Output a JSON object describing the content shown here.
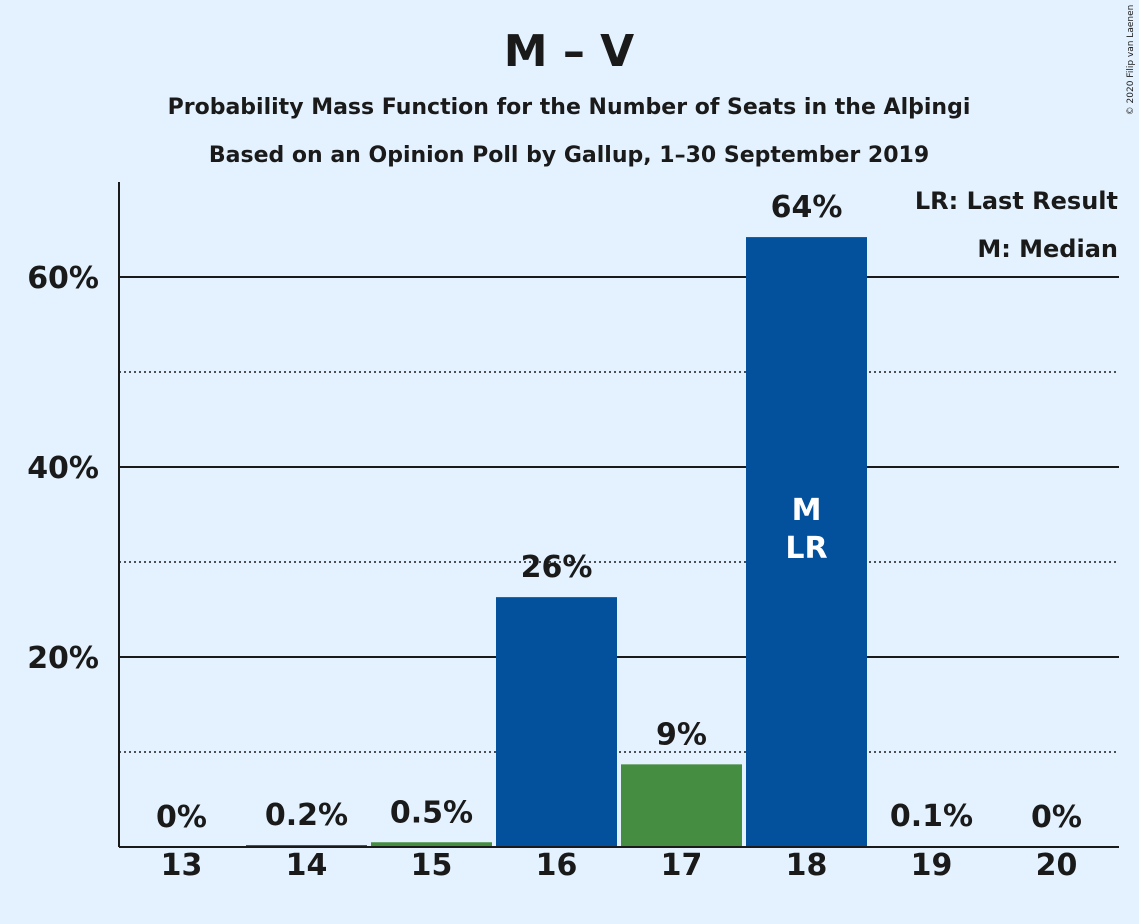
{
  "colors": {
    "background": "#e3f2fe",
    "bar_blue": "#03509c",
    "bar_green": "#458d41",
    "text": "#1a1a1a"
  },
  "chart_data": {
    "type": "bar",
    "title": "M – V",
    "subtitle": "Probability Mass Function for the Number of Seats in the Alþingi",
    "subtitle2": "Based on an Opinion Poll by Gallup, 1–30 September 2019",
    "copyright": "© 2020 Filip van Laenen",
    "xlabel": "",
    "ylabel": "",
    "ylim": [
      0,
      70
    ],
    "yticks": [
      20,
      40,
      60
    ],
    "ytick_labels": [
      "20%",
      "40%",
      "60%"
    ],
    "minor_gridlines": [
      10,
      30,
      50
    ],
    "categories": [
      "13",
      "14",
      "15",
      "16",
      "17",
      "18",
      "19",
      "20"
    ],
    "values": [
      0,
      0.2,
      0.5,
      26.3,
      8.7,
      64.2,
      0.1,
      0
    ],
    "value_labels": [
      "0%",
      "0.2%",
      "0.5%",
      "26%",
      "9%",
      "64%",
      "0.1%",
      "0%"
    ],
    "bar_colors": [
      "blue",
      "blue",
      "green",
      "blue",
      "green",
      "blue",
      "blue",
      "blue"
    ],
    "inside_bar_labels": {
      "category": "18",
      "lines": [
        "M",
        "LR"
      ]
    },
    "legend": {
      "position": "top-right",
      "items": [
        "LR: Last Result",
        "M: Median"
      ]
    }
  }
}
